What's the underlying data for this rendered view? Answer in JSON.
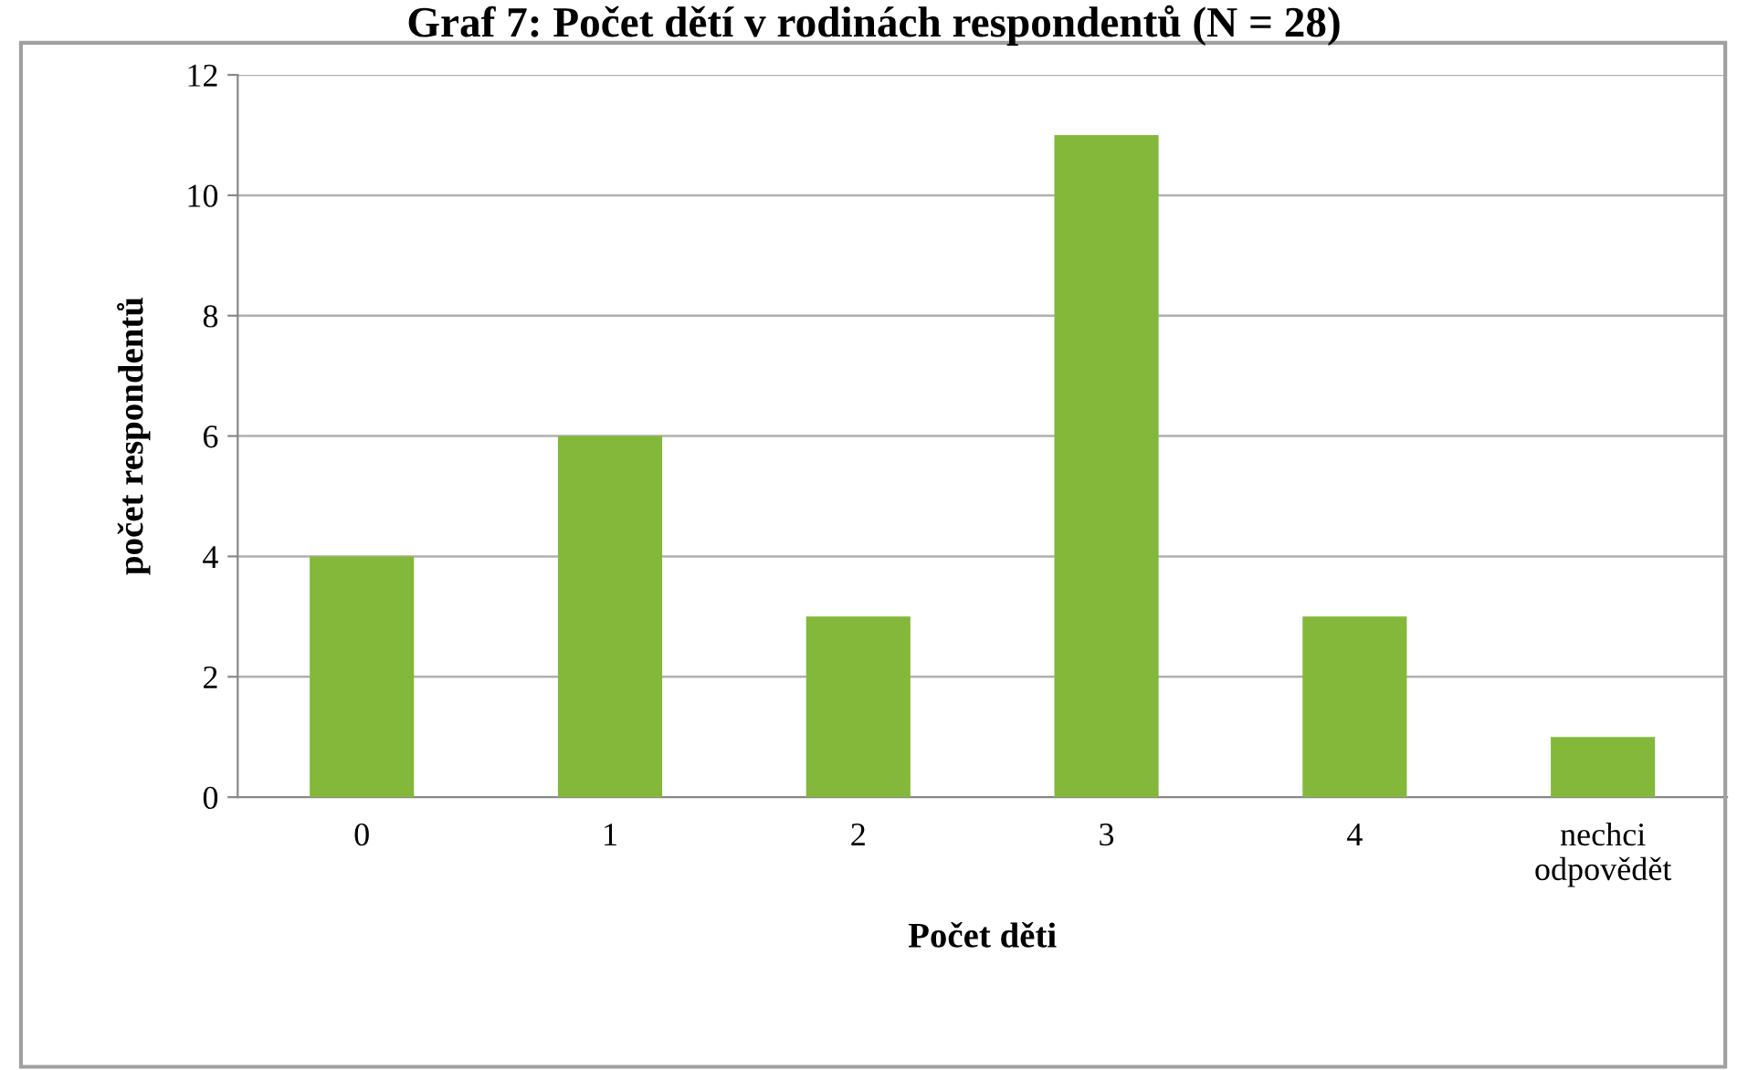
{
  "chart_data": {
    "type": "bar",
    "title": "Graf 7: Počet dětí v rodinách respondentů (N = 28)",
    "xlabel": "Počet děti",
    "ylabel": "počet respondentů",
    "categories": [
      "0",
      "1",
      "2",
      "3",
      "4",
      "nechci\nodpovědět"
    ],
    "values": [
      4,
      6,
      3,
      11,
      3,
      1
    ],
    "color": "#84b83a",
    "ylim": [
      0,
      12
    ],
    "yticks": [
      0,
      2,
      4,
      6,
      8,
      10,
      12
    ],
    "grid": "y"
  }
}
